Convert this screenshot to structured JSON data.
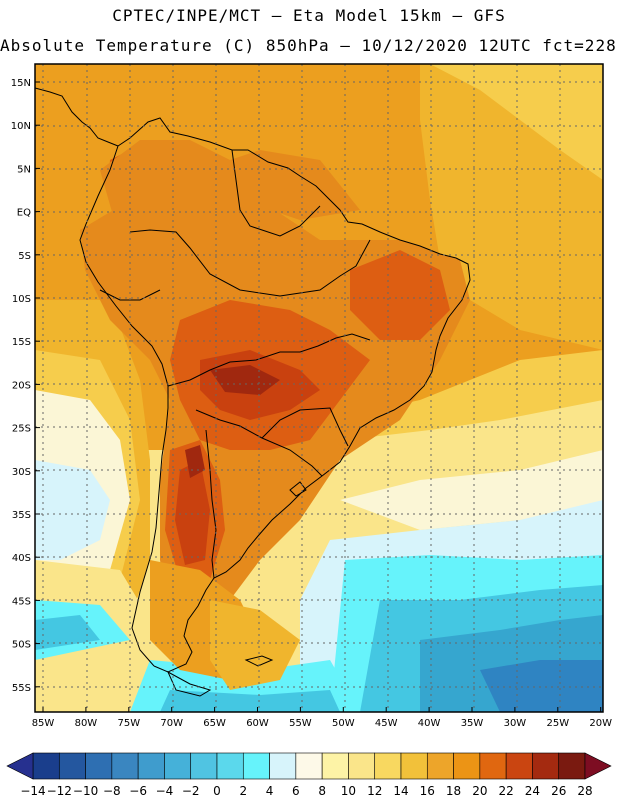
{
  "header": {
    "line1": "CPTEC/INPE/MCT –  Eta Model 15km – GFS",
    "line2": "Absolute Temperature (C) 850hPa – 10/12/2020 12UTC fct=228h"
  },
  "map": {
    "lat_ticks": [
      "15N",
      "10N",
      "5N",
      "EQ",
      "5S",
      "10S",
      "15S",
      "20S",
      "25S",
      "30S",
      "35S",
      "40S",
      "45S",
      "50S",
      "55S"
    ],
    "lon_ticks": [
      "85W",
      "80W",
      "75W",
      "70W",
      "65W",
      "60W",
      "55W",
      "50W",
      "45W",
      "40W",
      "35W",
      "30W",
      "25W",
      "20W"
    ],
    "colors": {
      "hot_dark": "#a0280f",
      "hot": "#c9410f",
      "warm_red": "#dd5e12",
      "warm_orange": "#e58a1c",
      "orange": "#ec9f1f",
      "amber": "#f0b52d",
      "yellow": "#f6cd4c",
      "light_yellow": "#fae58a",
      "cream": "#fbf6d6",
      "pale_cyan": "#d7f4fb",
      "cyan": "#66f3fb",
      "teal": "#44c7e2",
      "blue_teal": "#36a6cf",
      "blue": "#2f84c2",
      "coast": "#000000"
    }
  },
  "colorbar": {
    "labels": [
      "-14",
      "-12",
      "-10",
      "-8",
      "-6",
      "-4",
      "-2",
      "0",
      "2",
      "4",
      "6",
      "8",
      "10",
      "12",
      "14",
      "16",
      "18",
      "20",
      "22",
      "24",
      "26",
      "28"
    ],
    "colors": [
      "#1a3e8c",
      "#24579f",
      "#2e6fb2",
      "#3a86c0",
      "#3f9ccd",
      "#45b1d9",
      "#50c4e2",
      "#5bd8ec",
      "#66f3fb",
      "#d7f4fb",
      "#fdf9e8",
      "#fdf3a6",
      "#fae58a",
      "#f8d860",
      "#f2c13a",
      "#eda52a",
      "#ec9415",
      "#e06710",
      "#ca4511",
      "#a42a10",
      "#7a1a10"
    ],
    "low_arrow": "#26308f",
    "high_arrow": "#7d0d22"
  }
}
